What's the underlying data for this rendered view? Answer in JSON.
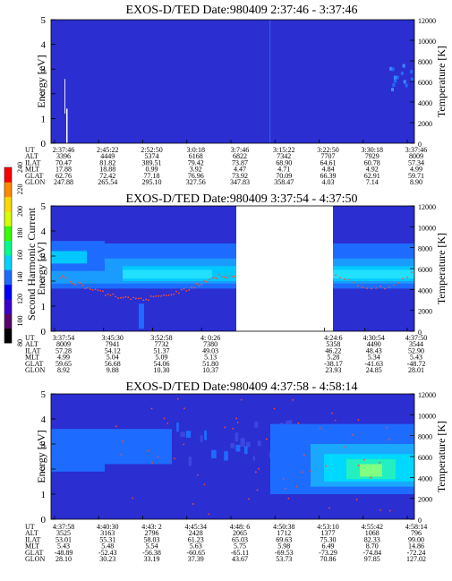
{
  "colorbar": {
    "label": "Second Harmonic Current",
    "ticks": [
      "240",
      "220",
      "200",
      "180",
      "160",
      "140",
      "120",
      "100",
      "80"
    ],
    "colors": [
      "#000000",
      "#5a006a",
      "#3a00d0",
      "#0000ff",
      "#1e6cff",
      "#00d4ff",
      "#00ff8c",
      "#36ff00",
      "#d8ff00",
      "#ffd800",
      "#ff8a00",
      "#ff0000"
    ]
  },
  "chart_data": [
    {
      "type": "heatmap",
      "title": "EXOS-D/TED   Date:980409  2:37:46 - 3:37:46",
      "ylabel": "Energy [eV]",
      "y2label": "Temperature [K]",
      "ylim": [
        0,
        5
      ],
      "y2lim": [
        0,
        12000
      ],
      "yticks": [
        "0",
        "1",
        "2",
        "3",
        "4",
        "5"
      ],
      "y2ticks": [
        "0",
        "2000",
        "4000",
        "6000",
        "8000",
        "10000",
        "12000"
      ],
      "row_labels": [
        "UT",
        "ALT",
        "ILAT",
        "MLT",
        "GLAT",
        "GLON"
      ],
      "columns": [
        [
          "2:37:46",
          "3396",
          "70.47",
          "17.88",
          "62.76",
          "247.88"
        ],
        [
          "2:45:22",
          "4449",
          "81.82",
          "18.88",
          "72.42",
          "265.54"
        ],
        [
          "2:52:50",
          "5374",
          "389.51",
          "0.99",
          "77.18",
          "295.10"
        ],
        [
          "3:0:18",
          "6168",
          "79.42",
          "3.92",
          "76.96",
          "327.56"
        ],
        [
          "3:7:46",
          "6822",
          "73.87",
          "4.47",
          "73.92",
          "347.83"
        ],
        [
          "3:15:22",
          "7342",
          "68.90",
          "4.71",
          "70.09",
          "358.47"
        ],
        [
          "3:22:50",
          "7707",
          "64.61",
          "4.84",
          "66.39",
          "4.03"
        ],
        [
          "3:30:18",
          "7929",
          "60.78",
          "4.92",
          "62.91",
          "7.14"
        ],
        [
          "3:37:46",
          "8009",
          "57.34",
          "4.99",
          "59.71",
          "8.90"
        ]
      ]
    },
    {
      "type": "heatmap",
      "title": "EXOS-D/TED   Date:980409  3:37:54 - 4:37:50",
      "ylabel": "Energy [eV]",
      "y2label": "Temperature [K]",
      "ylim": [
        0,
        5
      ],
      "y2lim": [
        0,
        12000
      ],
      "yticks": [
        "0",
        "1",
        "2",
        "3",
        "4",
        "5"
      ],
      "y2ticks": [
        "0",
        "2000",
        "4000",
        "6000",
        "8000",
        "10000",
        "12000"
      ],
      "row_labels": [
        "UT",
        "ALT",
        "ILAT",
        "MLT",
        "GLAT",
        "GLON"
      ],
      "columns": [
        [
          "3:37:54",
          "8009",
          "57.28",
          "4.99",
          "59.65",
          "8.92"
        ],
        [
          "3:45:30",
          "7941",
          "54.12",
          "5.04",
          "56.68",
          "9.88"
        ],
        [
          "3:52:58",
          "7732",
          "51.37",
          "5.09",
          "54.06",
          "10.30"
        ],
        [
          "4: 0:26",
          "7380",
          "49.03",
          "5.13",
          "51.80",
          "10.37"
        ],
        [
          "4:24:6",
          "5358",
          "46.22",
          "5.28",
          "-38.17",
          "23.93"
        ],
        [
          "4:30:54",
          "4490",
          "48.43",
          "5.34",
          "-41.63",
          "24.85"
        ],
        [
          "4:37:50",
          "3544",
          "52.90",
          "5.43",
          "-48.72",
          "28.01"
        ]
      ],
      "data_gap": "4:00:26 - 4:24:06"
    },
    {
      "type": "heatmap",
      "title": "EXOS-D/TED   Date:980409  4:37:58 - 4:58:14",
      "ylabel": "Energy [eV]",
      "y2label": "Temperature [K]",
      "ylim": [
        0,
        5
      ],
      "y2lim": [
        0,
        12000
      ],
      "yticks": [
        "0",
        "1",
        "2",
        "3",
        "4",
        "5"
      ],
      "y2ticks": [
        "0",
        "2000",
        "4000",
        "6000",
        "8000",
        "10000",
        "12000"
      ],
      "row_labels": [
        "UT",
        "ALT",
        "ILAT",
        "MLT",
        "GLAT",
        "GLON"
      ],
      "columns": [
        [
          "4:37:58",
          "3525",
          "53.01",
          "5.43",
          "-48.89",
          "28.10"
        ],
        [
          "4:40:30",
          "3163",
          "55.31",
          "5.48",
          "-52.43",
          "30.23"
        ],
        [
          "4:43: 2",
          "2796",
          "58.03",
          "5.54",
          "-56.38",
          "33.19"
        ],
        [
          "4:45:34",
          "2428",
          "61.23",
          "5.63",
          "-60.65",
          "37.39"
        ],
        [
          "4:48: 6",
          "2065",
          "65.03",
          "5.75",
          "-65.11",
          "43.67"
        ],
        [
          "4:50:38",
          "1712",
          "69.63",
          "5.98",
          "-69.53",
          "53.73"
        ],
        [
          "4:53:10",
          "1377",
          "75.30",
          "6.49",
          "-73.29",
          "70.86"
        ],
        [
          "4:55:42",
          "1068",
          "82.33",
          "8.70",
          "-74.84",
          "97.85"
        ],
        [
          "4:58:14",
          "796",
          "99.00",
          "14.86",
          "-72.24",
          "127.02"
        ]
      ]
    }
  ]
}
